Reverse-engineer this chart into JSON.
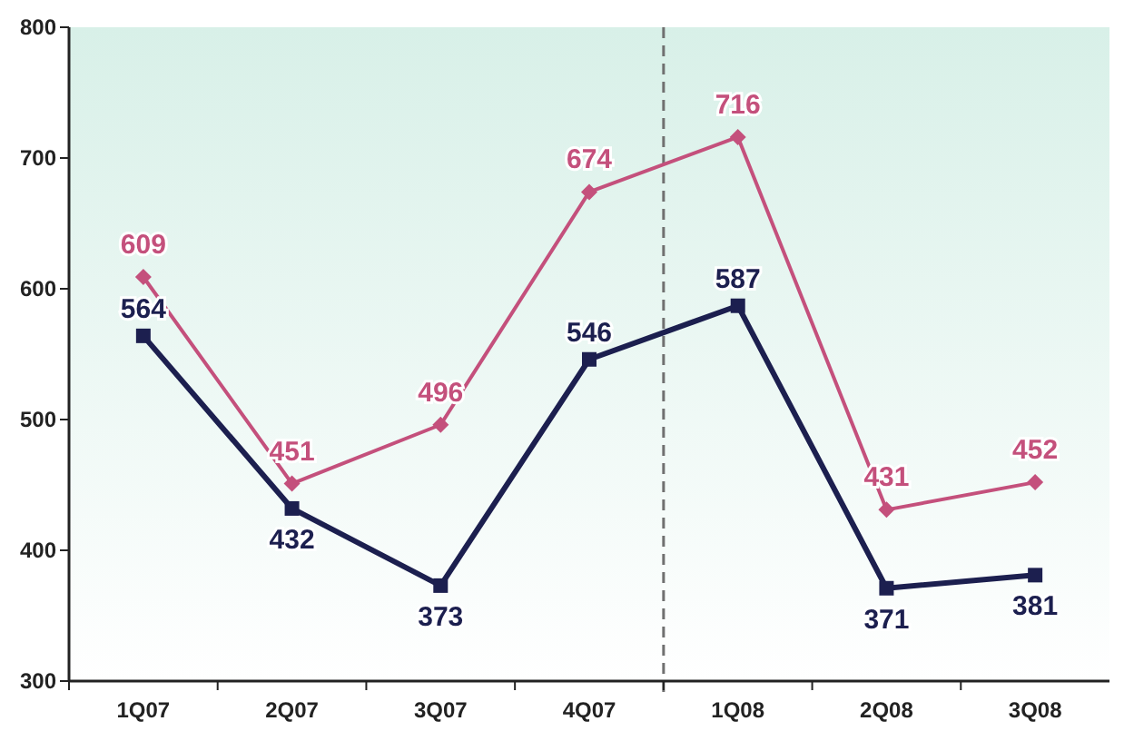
{
  "chart_data": {
    "type": "line",
    "categories": [
      "1Q07",
      "2Q07",
      "3Q07",
      "4Q07",
      "1Q08",
      "2Q08",
      "3Q08"
    ],
    "series": [
      {
        "color": "#c4507c",
        "values": [
          609,
          451,
          496,
          674,
          716,
          431,
          452
        ],
        "marker": "diamond"
      },
      {
        "color": "#1c1f4f",
        "values": [
          564,
          432,
          373,
          546,
          587,
          371,
          381
        ],
        "marker": "square"
      }
    ],
    "ylim": [
      300,
      800
    ],
    "yticks": [
      300,
      400,
      500,
      600,
      700,
      800
    ],
    "grid": false,
    "data_labels": true
  }
}
